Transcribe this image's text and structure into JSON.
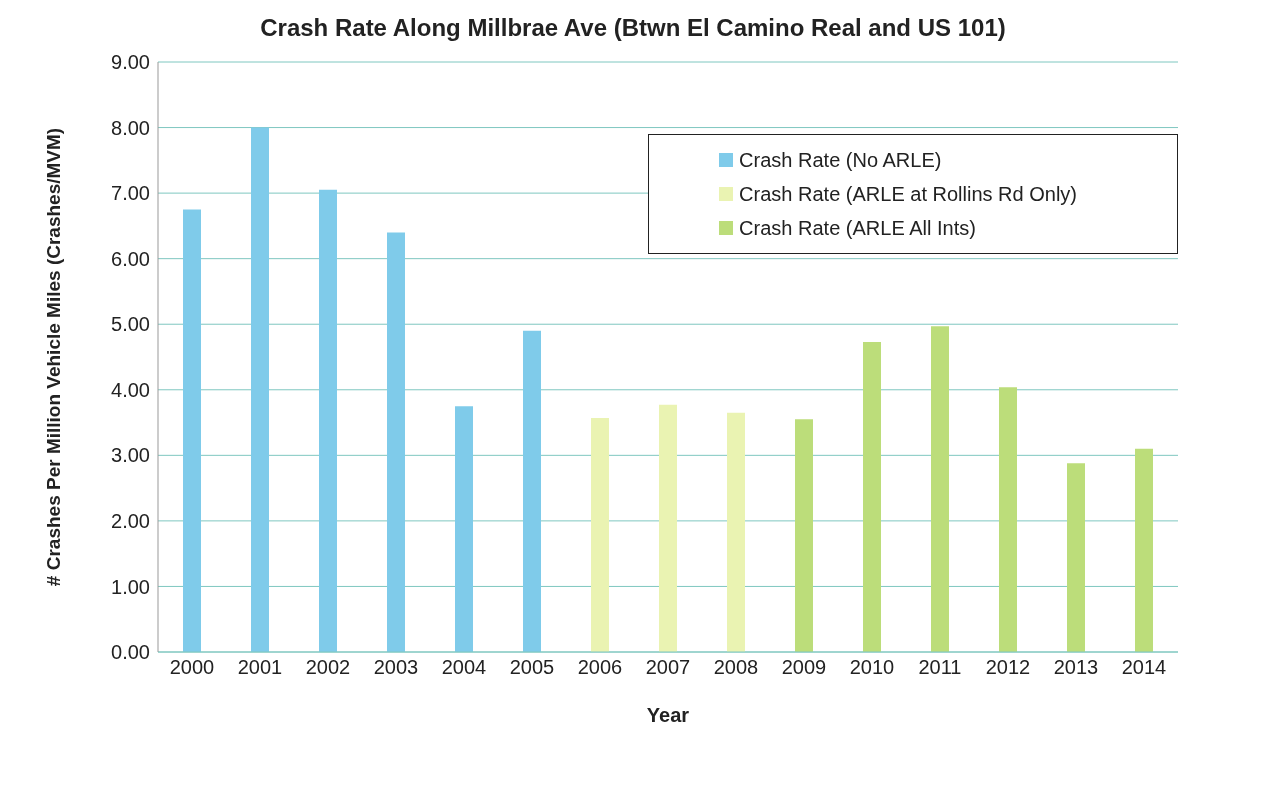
{
  "chart_data": {
    "type": "bar",
    "title": "Crash Rate Along Millbrae Ave (Btwn El Camino Real and US 101)",
    "xlabel": "Year",
    "ylabel": "# Crashes Per Million Vehicle Miles (Crashes/MVM)",
    "categories": [
      "2000",
      "2001",
      "2002",
      "2003",
      "2004",
      "2005",
      "2006",
      "2007",
      "2008",
      "2009",
      "2010",
      "2011",
      "2012",
      "2013",
      "2014"
    ],
    "series": [
      {
        "name": "Crash Rate (No ARLE)",
        "color": "#7fcbea",
        "values": [
          6.75,
          8.0,
          7.05,
          6.4,
          3.75,
          4.9,
          null,
          null,
          null,
          null,
          null,
          null,
          null,
          null,
          null
        ]
      },
      {
        "name": "Crash Rate (ARLE at Rollins Rd Only)",
        "color": "#eaf3b2",
        "values": [
          null,
          null,
          null,
          null,
          null,
          null,
          3.57,
          3.77,
          3.65,
          null,
          null,
          null,
          null,
          null,
          null
        ]
      },
      {
        "name": "Crash Rate (ARLE All Ints)",
        "color": "#bcdd7a",
        "values": [
          null,
          null,
          null,
          null,
          null,
          null,
          null,
          null,
          null,
          3.55,
          4.73,
          4.97,
          4.04,
          2.88,
          3.1
        ]
      }
    ],
    "ylim": [
      0,
      9
    ],
    "yticks": [
      {
        "value": 0,
        "label": "0.00"
      },
      {
        "value": 1,
        "label": "1.00"
      },
      {
        "value": 2,
        "label": "2.00"
      },
      {
        "value": 3,
        "label": "3.00"
      },
      {
        "value": 4,
        "label": "4.00"
      },
      {
        "value": 5,
        "label": "5.00"
      },
      {
        "value": 6,
        "label": "6.00"
      },
      {
        "value": 7,
        "label": "7.00"
      },
      {
        "value": 8,
        "label": "8.00"
      },
      {
        "value": 9,
        "label": "9.00"
      }
    ],
    "grid": "y",
    "legend": "top right"
  }
}
